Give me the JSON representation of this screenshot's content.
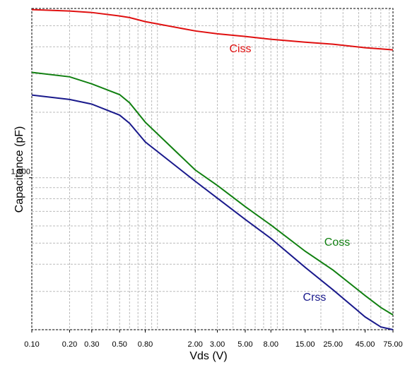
{
  "chart_data": {
    "type": "line",
    "xlabel": "Vds (V)",
    "ylabel": "Capacitance (pF)",
    "xscale": "log",
    "yscale": "log",
    "grid": true,
    "xlim": [
      0.1,
      75
    ],
    "ylim": [
      200,
      6000
    ],
    "xticks": [
      {
        "value": 0.1,
        "label": "0.10"
      },
      {
        "value": 0.2,
        "label": "0.20"
      },
      {
        "value": 0.3,
        "label": "0.30"
      },
      {
        "value": 0.5,
        "label": "0.50"
      },
      {
        "value": 0.8,
        "label": "0.80"
      },
      {
        "value": 2,
        "label": "2.00"
      },
      {
        "value": 3,
        "label": "3.00"
      },
      {
        "value": 5,
        "label": "5.00"
      },
      {
        "value": 8,
        "label": "8.00"
      },
      {
        "value": 15,
        "label": "15.00"
      },
      {
        "value": 25,
        "label": "25.00"
      },
      {
        "value": 45,
        "label": "45.00"
      },
      {
        "value": 75,
        "label": "75.00"
      }
    ],
    "yticks": [
      {
        "value": 1000,
        "label": "1,000"
      }
    ],
    "xgrid": [
      0.1,
      0.2,
      0.3,
      0.4,
      0.5,
      0.6,
      0.7,
      0.8,
      0.9,
      1,
      2,
      3,
      4,
      5,
      6,
      7,
      8,
      9,
      10,
      20,
      30,
      40,
      50,
      60,
      70
    ],
    "ygrid": [
      200,
      300,
      400,
      500,
      600,
      700,
      800,
      900,
      1000,
      2000,
      3000,
      4000,
      5000
    ],
    "x": [
      0.1,
      0.2,
      0.3,
      0.5,
      0.6,
      0.8,
      2,
      3,
      5,
      8,
      15,
      25,
      45,
      60,
      75
    ],
    "series": [
      {
        "name": "Ciss",
        "color": "#e01010",
        "values": [
          5930,
          5840,
          5750,
          5540,
          5450,
          5220,
          4730,
          4590,
          4460,
          4330,
          4200,
          4110,
          3960,
          3910,
          3870
        ]
      },
      {
        "name": "Coss",
        "color": "#118011",
        "values": [
          3050,
          2910,
          2700,
          2410,
          2210,
          1800,
          1085,
          921,
          736,
          606,
          459,
          376,
          287,
          253,
          234
        ]
      },
      {
        "name": "Crss",
        "color": "#1a1a8c",
        "values": [
          2400,
          2290,
          2180,
          1940,
          1780,
          1460,
          963,
          805,
          643,
          526,
          387,
          305,
          229,
          206,
          200
        ]
      }
    ]
  }
}
